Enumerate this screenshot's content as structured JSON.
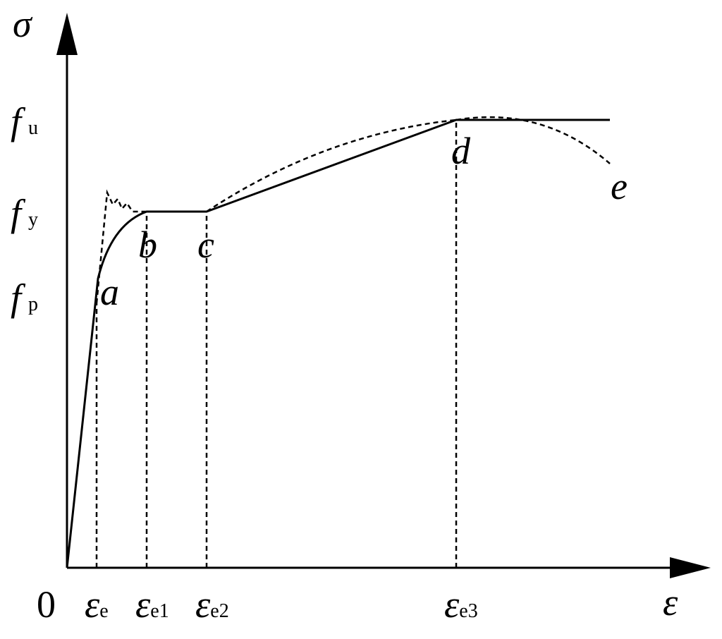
{
  "axes": {
    "y_label": "σ",
    "x_label": "ε",
    "origin": "0"
  },
  "y_levels": [
    {
      "symbol": "f",
      "subscript": "u"
    },
    {
      "symbol": "f",
      "subscript": "y"
    },
    {
      "symbol": "f",
      "subscript": "p"
    }
  ],
  "x_marks": [
    {
      "symbol": "ε",
      "subscript": "e"
    },
    {
      "symbol": "ε",
      "subscript": "e1"
    },
    {
      "symbol": "ε",
      "subscript": "e2"
    },
    {
      "symbol": "ε",
      "subscript": "e3"
    }
  ],
  "points": [
    "a",
    "b",
    "c",
    "d",
    "e"
  ]
}
